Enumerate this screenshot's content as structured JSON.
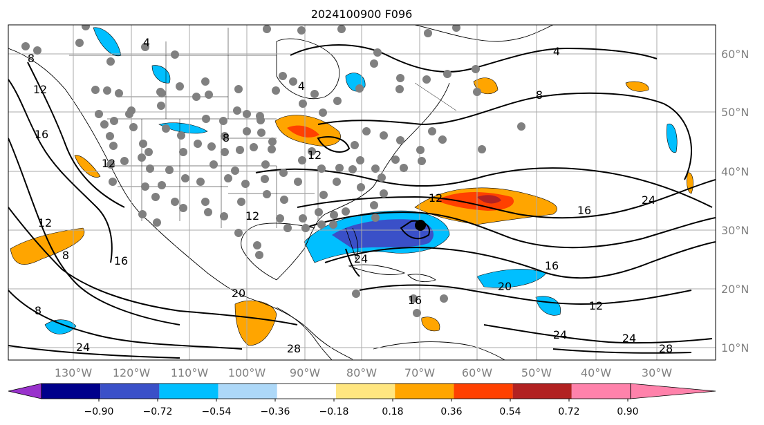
{
  "title": "2024100900 F096",
  "map": {
    "lon_labels": [
      "130°W",
      "120°W",
      "110°W",
      "100°W",
      "90°W",
      "80°W",
      "70°W",
      "60°W",
      "50°W",
      "40°W",
      "30°W"
    ],
    "lat_labels": [
      "60°N",
      "50°N",
      "40°N",
      "30°N",
      "20°N",
      "10°N"
    ],
    "contour_labels": [
      "4",
      "4",
      "4",
      "8",
      "8",
      "8",
      "8",
      "12",
      "12",
      "12",
      "12",
      "12",
      "12",
      "16",
      "16",
      "16",
      "16",
      "16",
      "20",
      "20",
      "24",
      "24",
      "24",
      "24",
      "24",
      "28",
      "28",
      "8",
      "12"
    ],
    "colors": {
      "coast": "#000000",
      "grid": "#999999",
      "point": "#808080"
    }
  },
  "colorbar": {
    "ticks": [
      "−0.90",
      "−0.72",
      "−0.54",
      "−0.36",
      "−0.18",
      "0.18",
      "0.36",
      "0.54",
      "0.72",
      "0.90"
    ],
    "colors": [
      "#9932cc",
      "#00008b",
      "#3a50c8",
      "#00bfff",
      "#add8f8",
      "#ffffff",
      "#ffe680",
      "#ffa500",
      "#ff4000",
      "#b22222",
      "#ff82ab"
    ]
  }
}
